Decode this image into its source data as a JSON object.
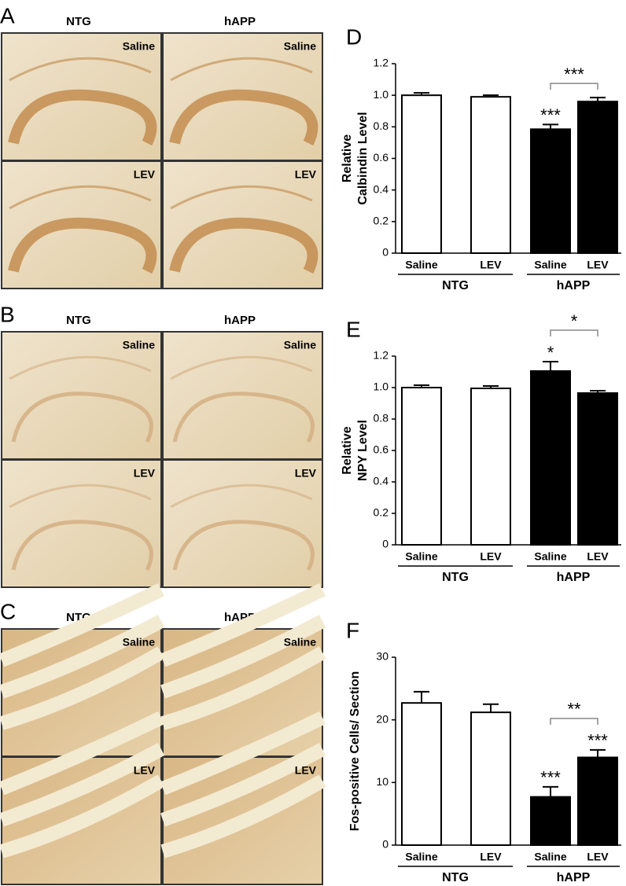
{
  "panels": [
    {
      "letter": "A",
      "columns": [
        "NTG",
        "hAPP"
      ],
      "rows": [
        "Saline",
        "LEV"
      ]
    },
    {
      "letter": "B",
      "columns": [
        "NTG",
        "hAPP"
      ],
      "rows": [
        "Saline",
        "LEV"
      ]
    },
    {
      "letter": "C",
      "columns": [
        "NTG",
        "hAPP"
      ],
      "rows": [
        "Saline",
        "LEV"
      ]
    }
  ],
  "chart_data": [
    {
      "type": "bar",
      "panel": "D",
      "ylabel": [
        "Relative",
        "Calbindin Level"
      ],
      "categories": [
        "Saline",
        "LEV",
        "Saline",
        "LEV"
      ],
      "groups": [
        "NTG",
        "hAPP"
      ],
      "values": [
        1.0,
        0.99,
        0.785,
        0.96
      ],
      "errors": [
        0.015,
        0.01,
        0.03,
        0.025
      ],
      "colors": [
        "#ffffff",
        "#ffffff",
        "#000000",
        "#000000"
      ],
      "ylim": [
        0,
        1.2
      ],
      "yticks": [
        0,
        0.2,
        0.4,
        0.6,
        0.8,
        {
          "value": 1,
          "label": "1.0"
        },
        1.2
      ],
      "bar_annotations": [
        null,
        null,
        "***",
        null
      ],
      "comparison_label": "***"
    },
    {
      "type": "bar",
      "panel": "E",
      "ylabel": [
        "Relative",
        "NPY Level"
      ],
      "categories": [
        "Saline",
        "LEV",
        "Saline",
        "LEV"
      ],
      "groups": [
        "NTG",
        "hAPP"
      ],
      "values": [
        1.0,
        0.995,
        1.105,
        0.965
      ],
      "errors": [
        0.015,
        0.015,
        0.06,
        0.015
      ],
      "colors": [
        "#ffffff",
        "#ffffff",
        "#000000",
        "#000000"
      ],
      "ylim": [
        0,
        1.2
      ],
      "yticks": [
        0,
        0.2,
        0.4,
        0.6,
        0.8,
        {
          "value": 1,
          "label": "1.0"
        },
        1.2
      ],
      "bar_annotations": [
        null,
        null,
        "*",
        null
      ],
      "comparison_label": "*"
    },
    {
      "type": "bar",
      "panel": "F",
      "ylabel": [
        "Fos-positive Cells/ Section"
      ],
      "categories": [
        "Saline",
        "LEV",
        "Saline",
        "LEV"
      ],
      "groups": [
        "NTG",
        "hAPP"
      ],
      "values": [
        22.7,
        21.2,
        7.7,
        14.0
      ],
      "errors": [
        1.8,
        1.3,
        1.6,
        1.2
      ],
      "colors": [
        "#ffffff",
        "#ffffff",
        "#000000",
        "#000000"
      ],
      "ylim": [
        0,
        30
      ],
      "yticks": [
        0,
        10,
        20,
        30
      ],
      "bar_annotations": [
        null,
        null,
        "***",
        "***"
      ],
      "comparison_label": "**"
    }
  ]
}
